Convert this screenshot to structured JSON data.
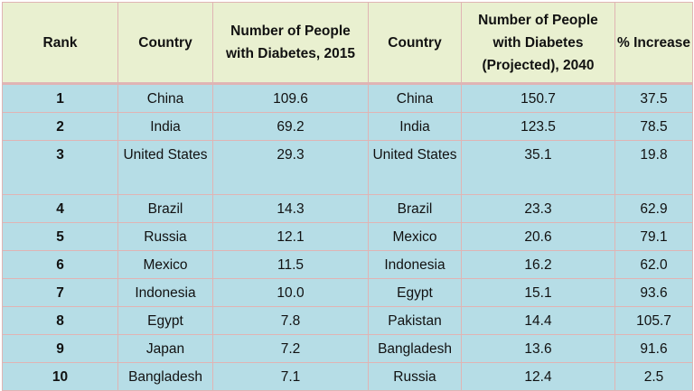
{
  "table": {
    "headers": [
      "Rank",
      "Country",
      "Number of People with Diabetes, 2015",
      "Country",
      "Number of People with Diabetes (Projected), 2040",
      "% Increase"
    ],
    "rows": [
      [
        "1",
        "China",
        "109.6",
        "China",
        "150.7",
        "37.5"
      ],
      [
        "2",
        "India",
        "69.2",
        "India",
        "123.5",
        "78.5"
      ],
      [
        "3",
        "United States",
        "29.3",
        "United States",
        "35.1",
        "19.8"
      ],
      [
        "4",
        "Brazil",
        "14.3",
        "Brazil",
        "23.3",
        "62.9"
      ],
      [
        "5",
        "Russia",
        "12.1",
        "Mexico",
        "20.6",
        "79.1"
      ],
      [
        "6",
        "Mexico",
        "11.5",
        "Indonesia",
        "16.2",
        "62.0"
      ],
      [
        "7",
        "Indonesia",
        "10.0",
        "Egypt",
        "15.1",
        "93.6"
      ],
      [
        "8",
        "Egypt",
        "7.8",
        "Pakistan",
        "14.4",
        "105.7"
      ],
      [
        "9",
        "Japan",
        "7.2",
        "Bangladesh",
        "13.6",
        "91.6"
      ],
      [
        "10",
        "Bangladesh",
        "7.1",
        "Russia",
        "12.4",
        "2.5"
      ]
    ]
  },
  "colors": {
    "header_bg": "#e9f0d0",
    "body_bg": "#b6dde6",
    "grid": "#e0b4b4"
  }
}
